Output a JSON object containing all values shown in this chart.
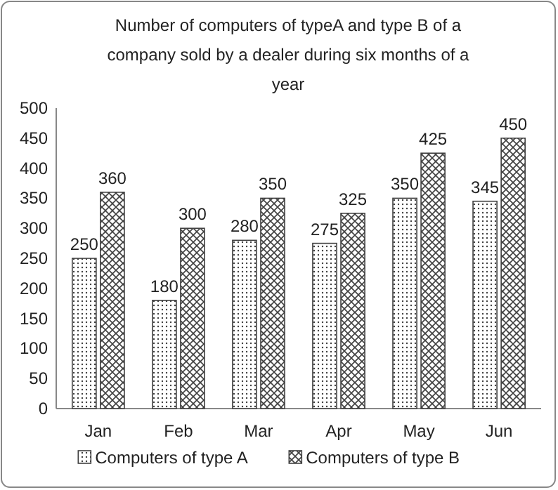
{
  "chart_data": {
    "type": "bar",
    "title": "Number  of computers of typeA  and type  B of a company sold by a dealer during six months of a year",
    "categories": [
      "Jan",
      "Feb",
      "Mar",
      "Apr",
      "May",
      "Jun"
    ],
    "series": [
      {
        "name": "Computers of type  A",
        "color": "#404040",
        "values": [
          250,
          180,
          280,
          275,
          350,
          345
        ]
      },
      {
        "name": "Computers of type B",
        "color": "#404040",
        "values": [
          360,
          300,
          350,
          325,
          425,
          450
        ]
      }
    ],
    "ylim": [
      0,
      500
    ],
    "yticks": [
      0,
      50,
      100,
      150,
      200,
      250,
      300,
      350,
      400,
      450,
      500
    ],
    "data_labels": true,
    "legend": "bottom",
    "grid": false
  }
}
